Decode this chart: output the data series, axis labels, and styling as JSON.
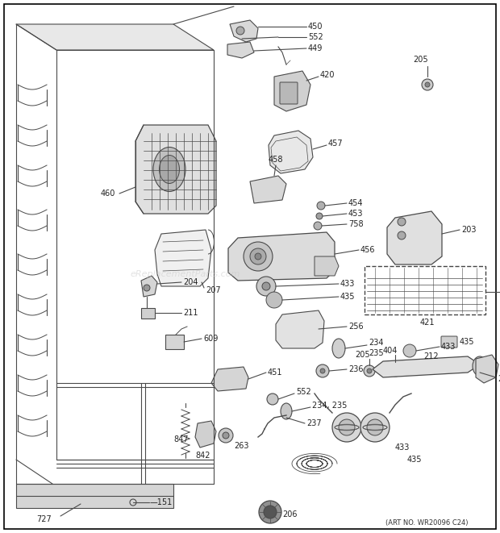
{
  "art_no": "(ART NO. WR20096 C24)",
  "watermark": "eReplacementParts.com",
  "bg_color": "#ffffff",
  "lc": "#4a4a4a",
  "lw": 0.8,
  "figsize": [
    6.2,
    6.61
  ],
  "dpi": 100
}
